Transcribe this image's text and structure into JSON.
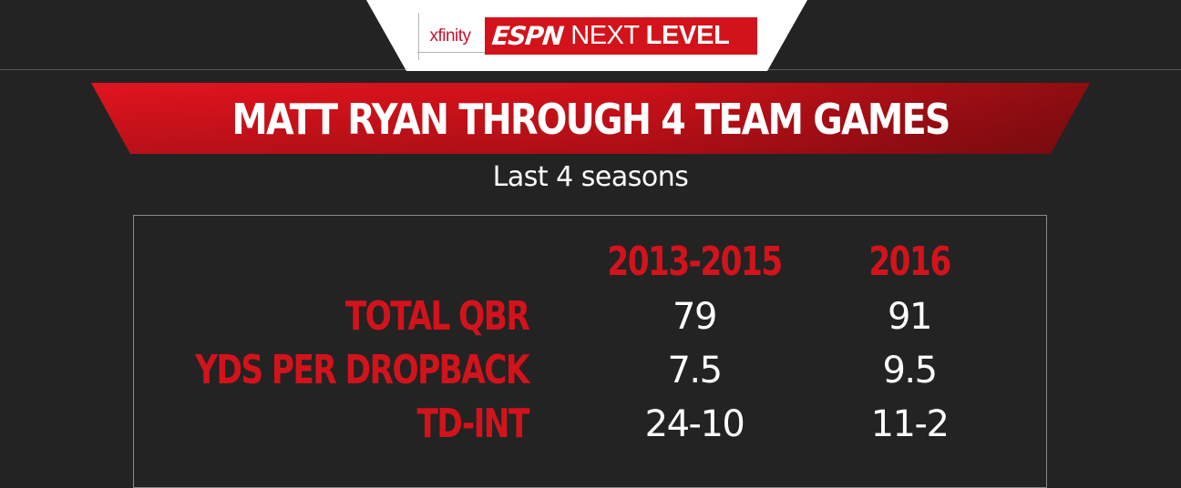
{
  "logo": {
    "xfinity": "xfinity",
    "espn": "ESPN",
    "next": "NEXT",
    "level": "LEVEL"
  },
  "title": "MATT RYAN THROUGH 4 TEAM GAMES",
  "subtitle": "Last 4 seasons",
  "table": {
    "columns": [
      "2013-2015",
      "2016"
    ],
    "rows": [
      {
        "label": "TOTAL QBR",
        "values": [
          "79",
          "91"
        ]
      },
      {
        "label": "YDS PER DROPBACK",
        "values": [
          "7.5",
          "9.5"
        ]
      },
      {
        "label": "TD-INT",
        "values": [
          "24-10",
          "11-2"
        ]
      }
    ]
  },
  "colors": {
    "background": "#232323",
    "accent_red": "#d3131b",
    "text": "#ffffff"
  }
}
